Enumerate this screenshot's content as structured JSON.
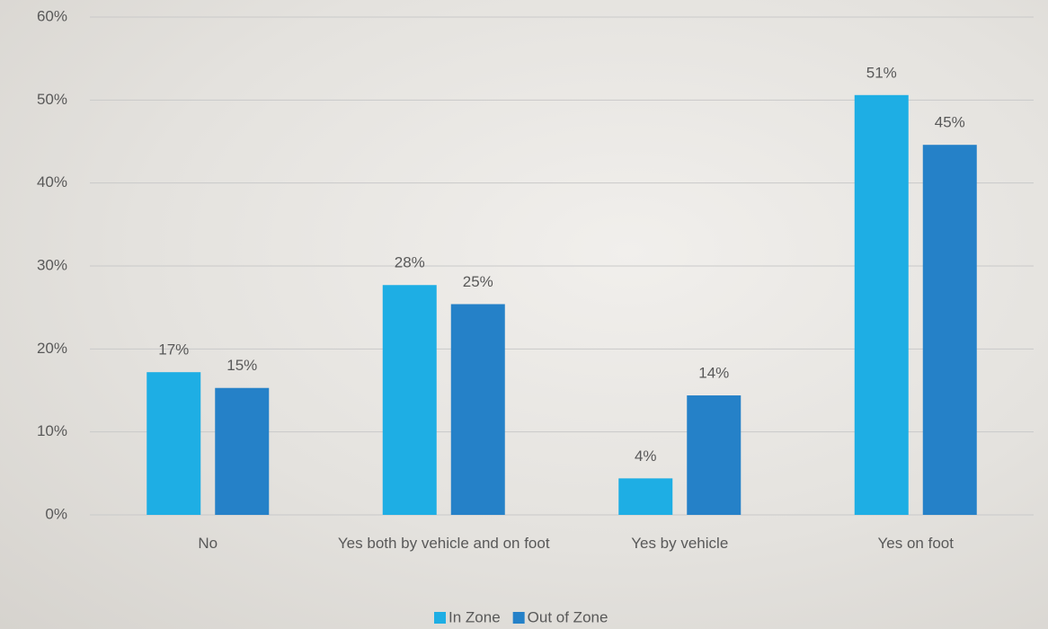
{
  "chart_data": {
    "type": "bar",
    "categories": [
      "No",
      "Yes both by vehicle and on foot",
      "Yes by vehicle",
      "Yes on foot"
    ],
    "series": [
      {
        "name": "In Zone",
        "color": "#1eaee4",
        "values": [
          17.2,
          27.7,
          4.4,
          50.6
        ],
        "value_labels": [
          "17%",
          "28%",
          "4%",
          "51%"
        ]
      },
      {
        "name": "Out of Zone",
        "color": "#2581c8",
        "values": [
          15.3,
          25.4,
          14.4,
          44.6
        ],
        "value_labels": [
          "15%",
          "25%",
          "14%",
          "45%"
        ]
      }
    ],
    "ylim": [
      0,
      60
    ],
    "yticks": [
      {
        "value": 0,
        "label": "0%"
      },
      {
        "value": 10,
        "label": "10%"
      },
      {
        "value": 20,
        "label": "20%"
      },
      {
        "value": 30,
        "label": "30%"
      },
      {
        "value": 40,
        "label": "40%"
      },
      {
        "value": 50,
        "label": "50%"
      },
      {
        "value": 60,
        "label": "60%"
      }
    ],
    "grid": true,
    "legend": "bottom"
  }
}
